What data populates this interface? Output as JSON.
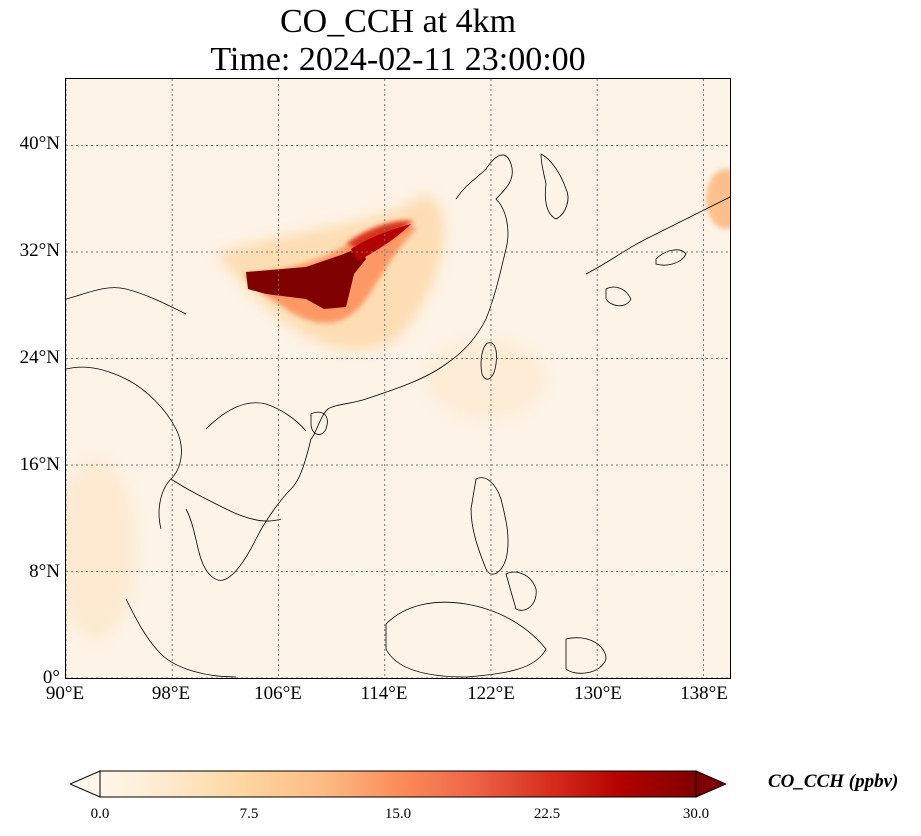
{
  "title": {
    "line1": "CO_CCH at 4km",
    "line2": "Time: 2024-02-11 23:00:00"
  },
  "map": {
    "projection": "PlateCarree",
    "lon_range": [
      90,
      140
    ],
    "lat_range": [
      0,
      45
    ],
    "gridlines": "dotted",
    "background_color": "#fdf3e6",
    "coastline_color": "#000000",
    "lat_ticks": [
      {
        "value": 40,
        "label": "40°N"
      },
      {
        "value": 32,
        "label": "32°N"
      },
      {
        "value": 24,
        "label": "24°N"
      },
      {
        "value": 16,
        "label": "16°N"
      },
      {
        "value": 8,
        "label": "8°N"
      },
      {
        "value": 0,
        "label": "0°"
      }
    ],
    "lon_ticks": [
      {
        "value": 90,
        "label": "90°E"
      },
      {
        "value": 98,
        "label": "98°E"
      },
      {
        "value": 106,
        "label": "106°E"
      },
      {
        "value": 114,
        "label": "114°E"
      },
      {
        "value": 122,
        "label": "122°E"
      },
      {
        "value": 130,
        "label": "130°E"
      },
      {
        "value": 138,
        "label": "138°E"
      }
    ],
    "plume": {
      "core_color": "#7f0000",
      "mid_color": "#d7301f",
      "edge_color": "#fdbb84"
    }
  },
  "colorbar": {
    "label": "CO_CCH (ppbv)",
    "colormap": "OrRd",
    "extend": "both",
    "range": [
      0.0,
      30.0
    ],
    "stops": [
      "#fff7ec",
      "#fee8c8",
      "#fdd49e",
      "#fdbb84",
      "#fc8d59",
      "#ef6548",
      "#d7301f",
      "#b30000",
      "#7f0000"
    ],
    "ticks": [
      {
        "value": 0.0,
        "label": "0.0"
      },
      {
        "value": 7.5,
        "label": "7.5"
      },
      {
        "value": 15.0,
        "label": "15.0"
      },
      {
        "value": 22.5,
        "label": "22.5"
      },
      {
        "value": 30.0,
        "label": "30.0"
      }
    ]
  }
}
